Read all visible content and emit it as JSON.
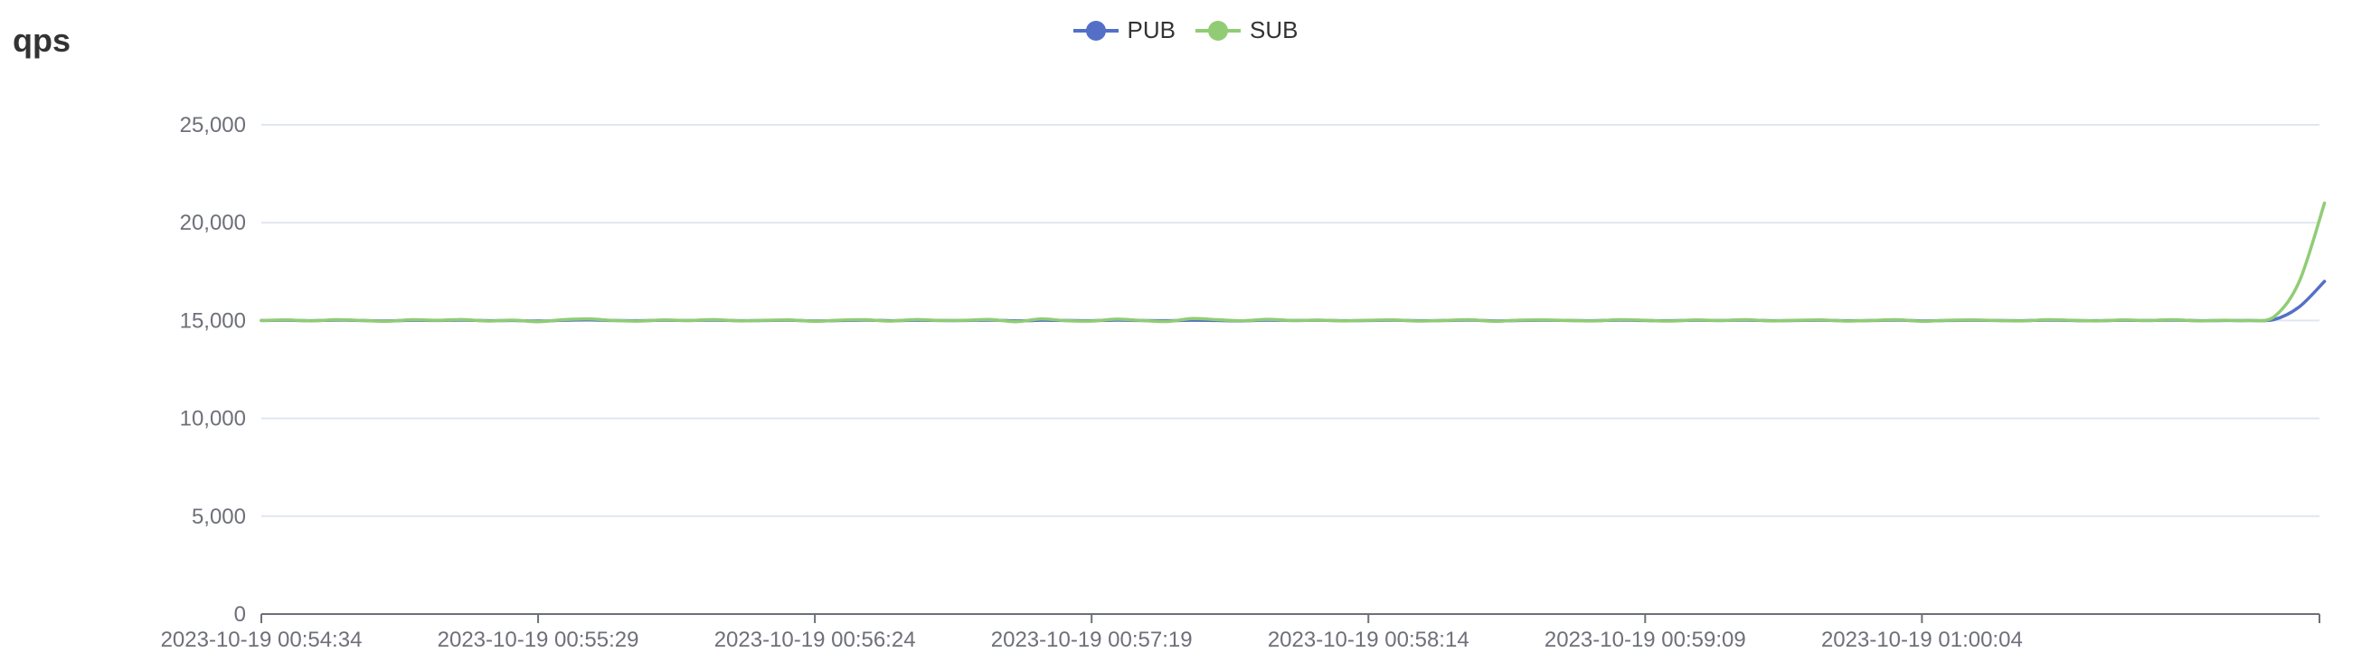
{
  "panel": {
    "title": "qps"
  },
  "colors": {
    "pub": "#5470c6",
    "sub": "#91cc75",
    "grid": "#e0e6f1",
    "axis": "#6e7079"
  },
  "chart_data": {
    "type": "line",
    "title": "qps",
    "legend_position": "top-center",
    "grid": true,
    "smooth": true,
    "xlabel": "",
    "ylabel": "",
    "ylim": [
      0,
      25000
    ],
    "yticks": [
      0,
      5000,
      10000,
      15000,
      20000,
      25000
    ],
    "ytick_labels": [
      "0",
      "5,000",
      "10,000",
      "15,000",
      "20,000",
      "25,000"
    ],
    "x_start": "2023-10-19 00:54:34",
    "x_end": "2023-10-19 01:01:23",
    "x_interval_seconds": 5,
    "xtick_labels": [
      "2023-10-19 00:54:34",
      "2023-10-19 00:55:29",
      "2023-10-19 00:56:24",
      "2023-10-19 00:57:19",
      "2023-10-19 00:58:14",
      "2023-10-19 00:59:09",
      "2023-10-19 01:00:04"
    ],
    "series": [
      {
        "name": "PUB",
        "values": [
          15000,
          15010,
          14990,
          15020,
          15000,
          14980,
          15010,
          15000,
          15020,
          14990,
          15000,
          14970,
          15010,
          15030,
          15000,
          14990,
          15010,
          15000,
          15020,
          14990,
          15000,
          15010,
          14980,
          15000,
          15020,
          14990,
          15010,
          15000,
          15000,
          15020,
          14980,
          15010,
          15000,
          14990,
          15020,
          15000,
          14990,
          15010,
          15000,
          14980,
          15020,
          15000,
          15010,
          14990,
          15000,
          15010,
          14990,
          15000,
          15020,
          14980,
          15000,
          15010,
          15000,
          14990,
          15020,
          15000,
          14990,
          15010,
          15000,
          15020,
          14990,
          15000,
          15010,
          14990,
          15000,
          15020,
          14980,
          15000,
          15010,
          15000,
          14990,
          15020,
          15000,
          14990,
          15010,
          15000,
          15020,
          14990,
          15000,
          15000,
          15050,
          15700,
          17000
        ]
      },
      {
        "name": "SUB",
        "values": [
          15000,
          15030,
          14980,
          15040,
          15000,
          14960,
          15040,
          15010,
          15050,
          14970,
          15020,
          14940,
          15040,
          15080,
          15000,
          14970,
          15030,
          15000,
          15050,
          14980,
          15010,
          15030,
          14960,
          15020,
          15040,
          14970,
          15050,
          15000,
          15010,
          15050,
          14940,
          15080,
          14990,
          14970,
          15070,
          15000,
          14950,
          15100,
          15040,
          14990,
          15060,
          15000,
          15020,
          14980,
          15010,
          15030,
          14970,
          15000,
          15040,
          14960,
          15020,
          15030,
          15000,
          14980,
          15040,
          15010,
          14970,
          15030,
          15000,
          15040,
          14980,
          15010,
          15030,
          14970,
          15000,
          15040,
          14960,
          15010,
          15030,
          15000,
          14980,
          15040,
          15010,
          14980,
          15030,
          15000,
          15040,
          14980,
          15010,
          15000,
          15200,
          17000,
          21000
        ]
      }
    ]
  }
}
